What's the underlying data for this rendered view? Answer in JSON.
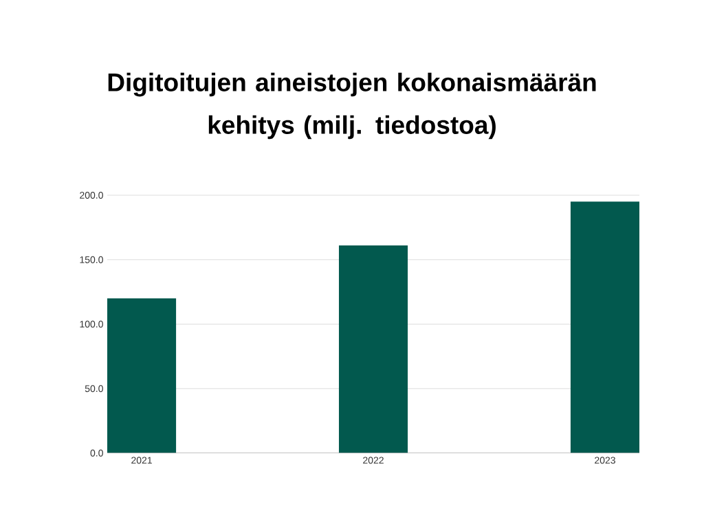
{
  "chart_data": {
    "type": "bar",
    "title": "Digitoitujen aineistojen kokonaismäärän kehitys (milj. tiedostoa)",
    "categories": [
      "2021",
      "2022",
      "2023"
    ],
    "values": [
      120,
      161,
      195
    ],
    "color": "#02594e",
    "ylim": [
      0,
      200
    ],
    "yticks": [
      {
        "value": 0,
        "label": "0.0"
      },
      {
        "value": 50,
        "label": "50.0"
      },
      {
        "value": 100,
        "label": "100.0"
      },
      {
        "value": 150,
        "label": "150.0"
      },
      {
        "value": 200,
        "label": "200.0"
      }
    ],
    "grid": "y"
  }
}
